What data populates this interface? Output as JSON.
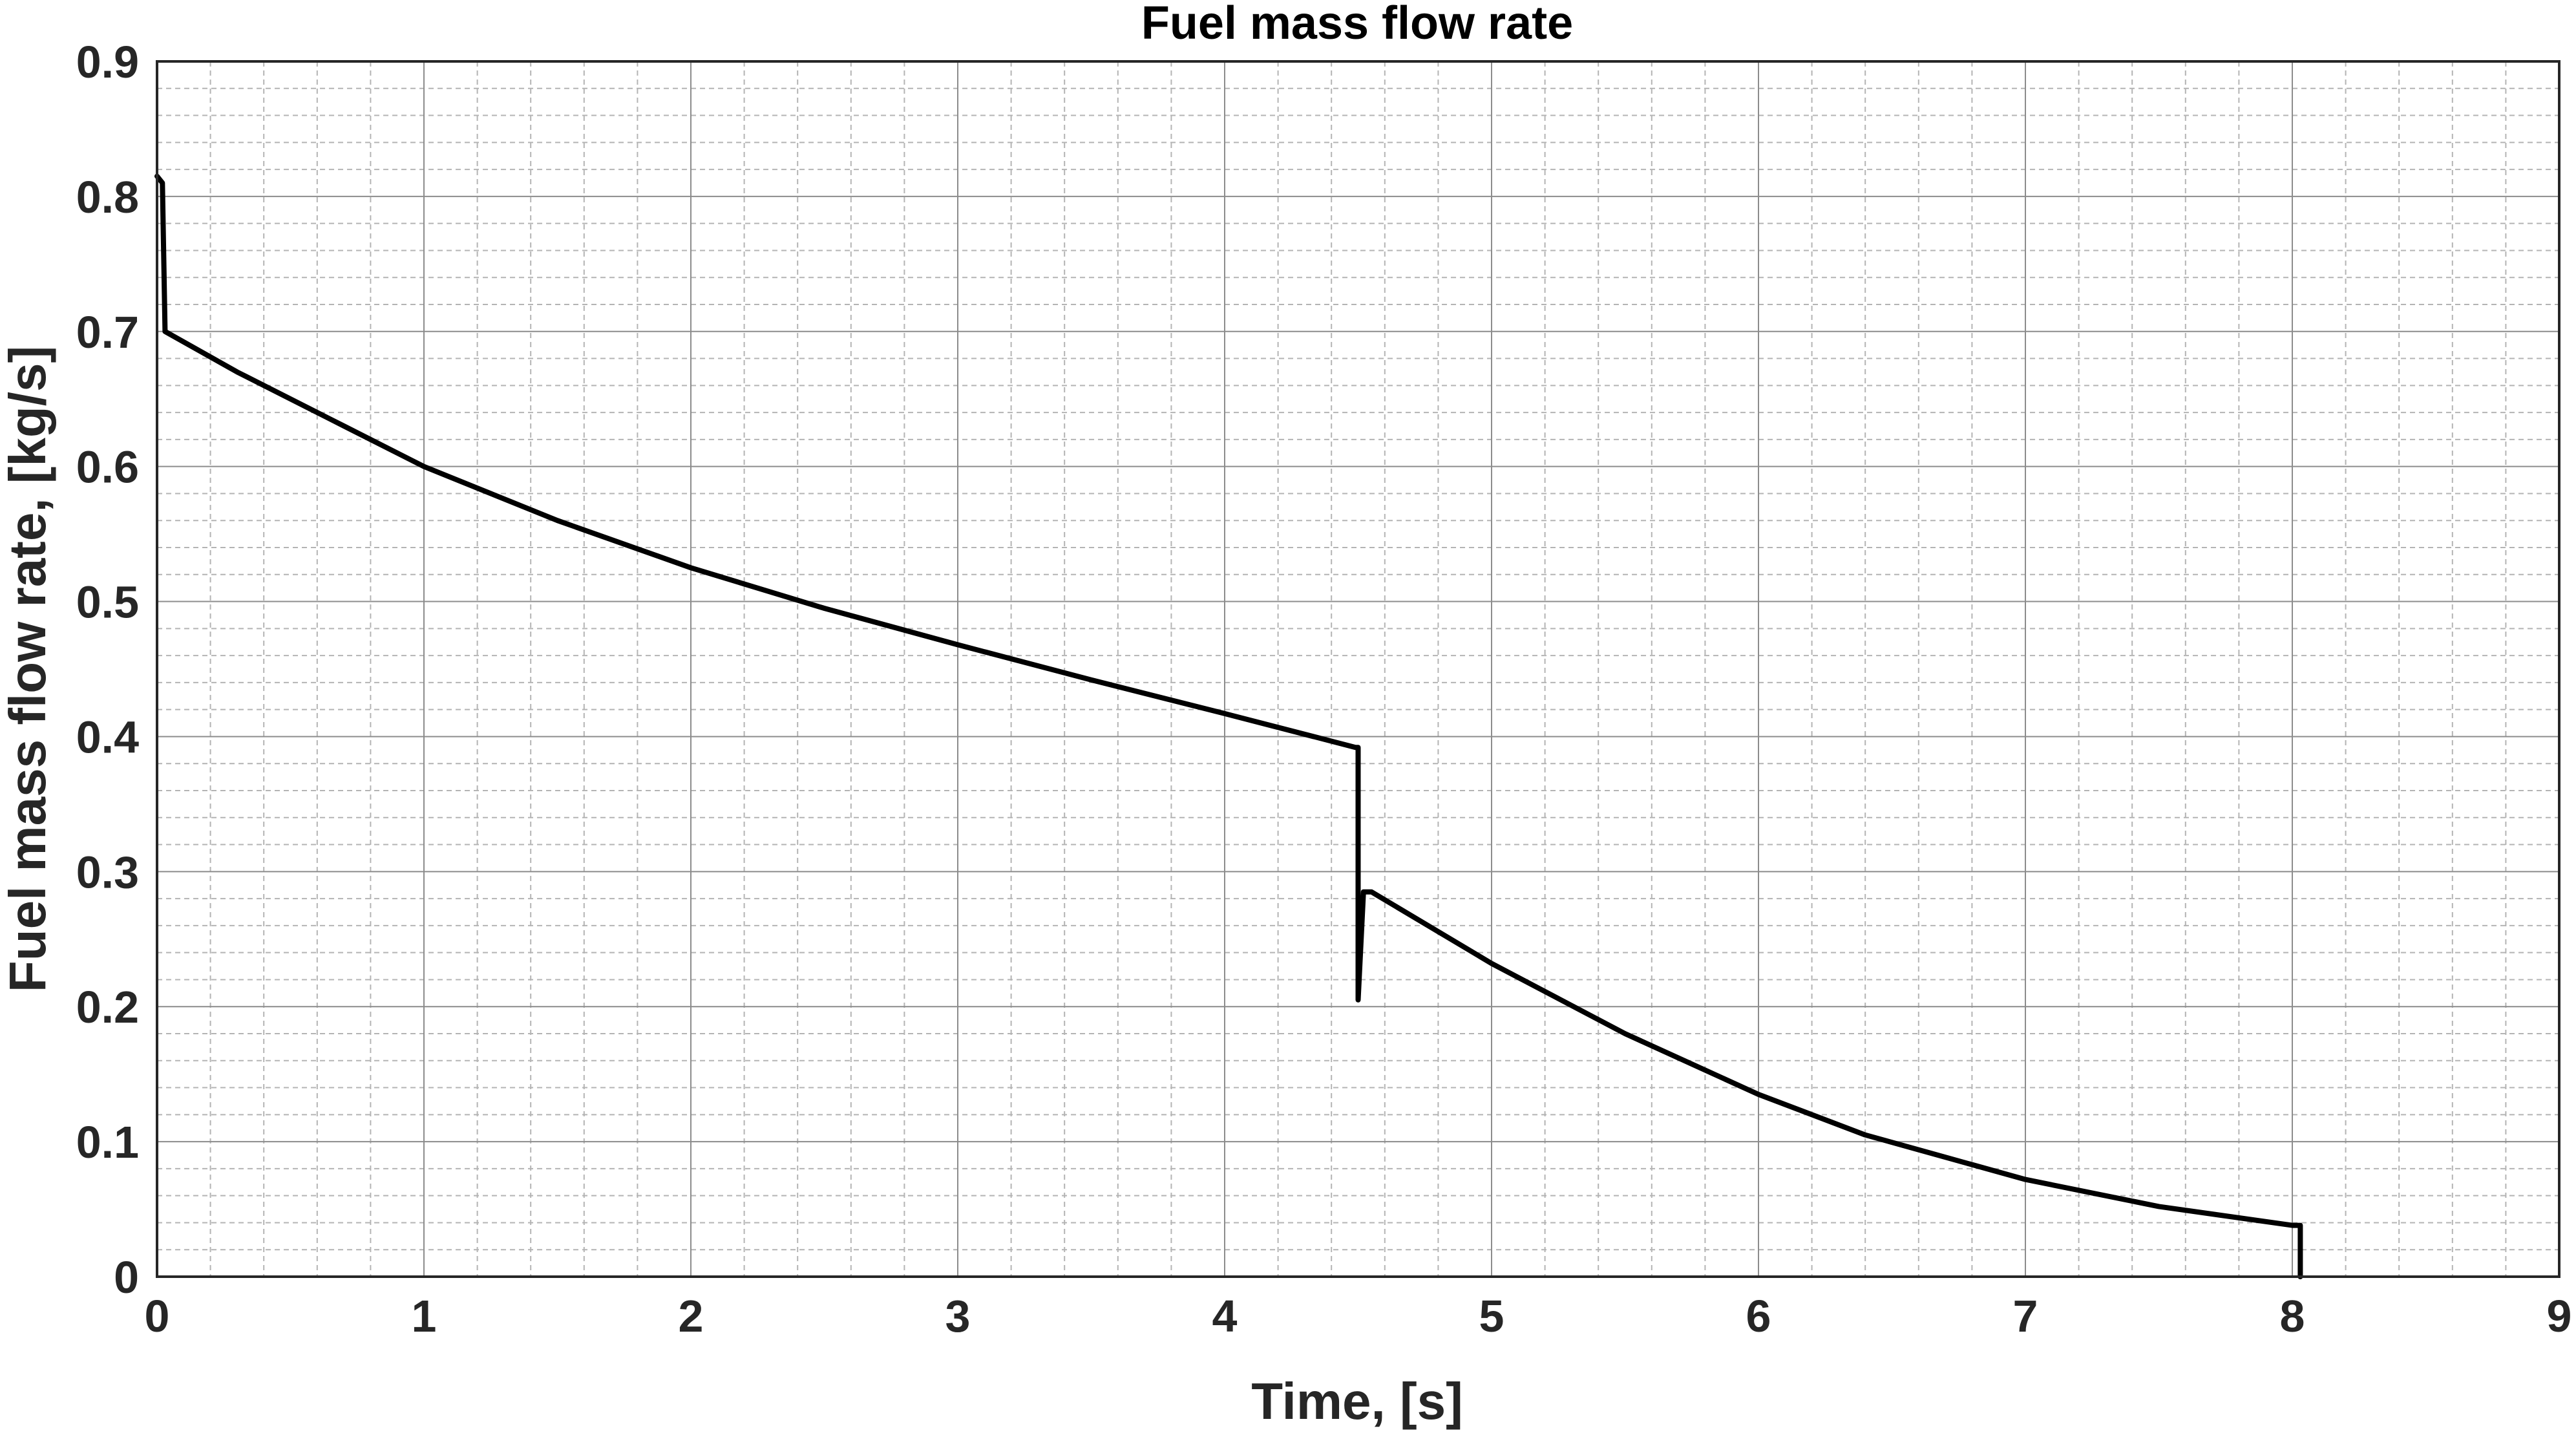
{
  "chart_data": {
    "type": "line",
    "title": "Fuel mass flow rate",
    "xlabel": "Time, [s]",
    "ylabel": "Fuel mass flow rate, [kg/s]",
    "xlim": [
      0,
      9
    ],
    "ylim": [
      0,
      0.9
    ],
    "xticks": [
      "0",
      "1",
      "2",
      "3",
      "4",
      "5",
      "6",
      "7",
      "8",
      "9"
    ],
    "yticks": [
      "0",
      "0.1",
      "0.2",
      "0.3",
      "0.4",
      "0.5",
      "0.6",
      "0.7",
      "0.8",
      "0.9"
    ],
    "grid": {
      "major": true,
      "minor": true
    },
    "series": [
      {
        "color": "#000000",
        "x": [
          0,
          0.02,
          0.03,
          0.3,
          0.7,
          1.0,
          1.5,
          2.0,
          2.5,
          3.0,
          3.5,
          4.0,
          4.49,
          4.49,
          4.5,
          4.5,
          4.52,
          4.55,
          5.0,
          5.5,
          6.0,
          6.4,
          7.0,
          7.5,
          8.0,
          8.03,
          8.03
        ],
        "y": [
          0.815,
          0.81,
          0.7,
          0.67,
          0.63,
          0.6,
          0.56,
          0.525,
          0.495,
          0.468,
          0.442,
          0.417,
          0.392,
          0.392,
          0.392,
          0.205,
          0.285,
          0.285,
          0.232,
          0.18,
          0.135,
          0.105,
          0.072,
          0.052,
          0.038,
          0.038,
          0
        ]
      }
    ]
  }
}
